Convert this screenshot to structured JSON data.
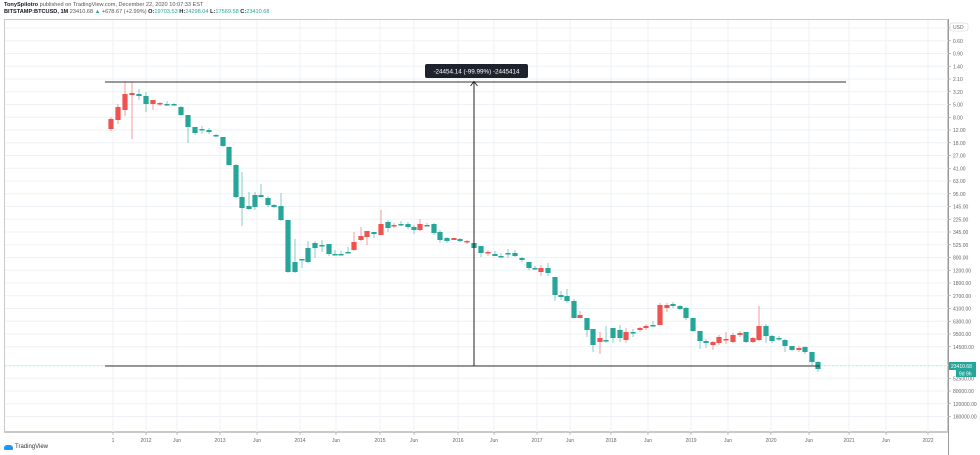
{
  "header": {
    "author": "TonySpilotro",
    "published": "published on TradingView.com, December 22, 2020 10:07:33 EST",
    "symbol": "BITSTAMP:BTCUSD, 1M",
    "last": "23410.68",
    "change": "+678.67 (+2.99%)",
    "open_label": "O:",
    "open": "19703.53",
    "high_label": "H:",
    "high": "24298.04",
    "low_label": "L:",
    "low": "17569.58",
    "close_label": "C:",
    "close": "23410.68"
  },
  "measure": {
    "label": "-24454.14 (-99.99%) -2445414"
  },
  "price_tag": {
    "value": "23410.68",
    "countdown": "9d 9h"
  },
  "currency": "USD",
  "footer": {
    "brand": "TradingView"
  },
  "colors": {
    "up": "#26a69a",
    "down": "#ef5350",
    "grid": "#eef2f6",
    "axis_text": "#666666"
  },
  "chart_data": {
    "type": "candlestick",
    "title": "BITSTAMP:BTCUSD, 1M (inverted scale)",
    "scale": "log, inverted",
    "yaxis_ticks": [
      "0.40",
      "0.60",
      "0.90",
      "1.40",
      "2.10",
      "3.20",
      "5.00",
      "8.00",
      "12.00",
      "18.00",
      "27.00",
      "41.00",
      "63.00",
      "95.00",
      "145.00",
      "225.00",
      "345.00",
      "525.00",
      "800.00",
      "1200.00",
      "1800.00",
      "2700.00",
      "4100.00",
      "6300.00",
      "9500.00",
      "14500.00",
      "34500.00",
      "52500.00",
      "80000.00",
      "120000.00",
      "180000.00"
    ],
    "xaxis_ticks": [
      "1",
      "2012",
      "Jun",
      "2013",
      "Jun",
      "2014",
      "Jun",
      "2015",
      "Jun",
      "2016",
      "Jun",
      "2017",
      "Jun",
      "2018",
      "Jun",
      "2019",
      "Jun",
      "2020",
      "Jun",
      "2021",
      "Jun",
      "2022"
    ],
    "annotations": [
      {
        "type": "hline",
        "price": "~2.10",
        "label": "top range line"
      },
      {
        "type": "hline",
        "price": "~24000",
        "label": "bottom range line"
      },
      {
        "type": "measure",
        "text": "-24454.14 (-99.99%) -2445414"
      }
    ],
    "last_price": 23410.68
  }
}
